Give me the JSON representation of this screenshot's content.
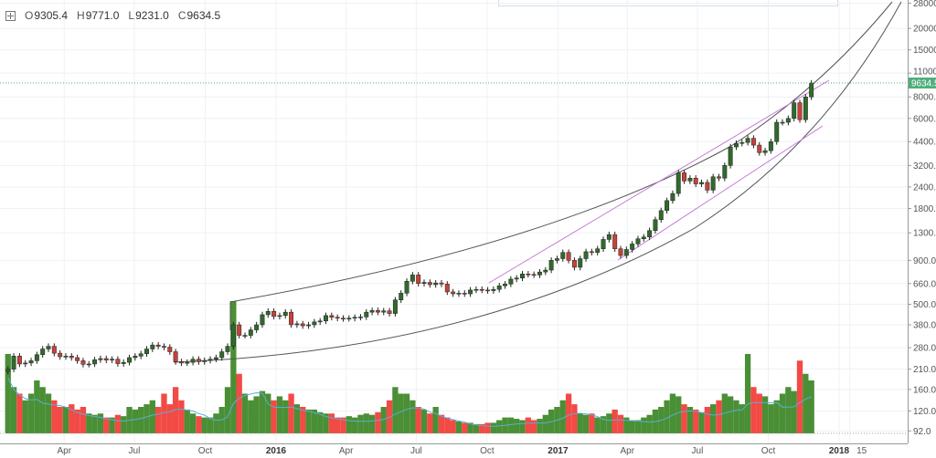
{
  "legend": {
    "open_label": "O",
    "open": "9305.4",
    "high_label": "H",
    "high": "9771.0",
    "low_label": "L",
    "low": "9231.0",
    "close_label": "C",
    "close": "9634.5"
  },
  "last_price_badge": "9634.5",
  "chart_data": {
    "type": "candlestick",
    "yscale": "log",
    "ylim": [
      88,
      28000
    ],
    "grid": true,
    "y_ticks": [
      "28000",
      "20000",
      "15000",
      "11000",
      "8000.0",
      "6000.0",
      "4400.0",
      "3200.0",
      "2400.0",
      "1800.0",
      "1300.0",
      "900.0",
      "660.0",
      "500.0",
      "380.0",
      "280.0",
      "210.0",
      "160.0",
      "120.0",
      "92.0"
    ],
    "x_ticks": [
      {
        "label": "Apr",
        "date": "2015-04-01"
      },
      {
        "label": "Jul",
        "date": "2015-07-01"
      },
      {
        "label": "Oct",
        "date": "2015-10-01"
      },
      {
        "label": "2016",
        "date": "2016-01-01",
        "year": true
      },
      {
        "label": "Apr",
        "date": "2016-04-01"
      },
      {
        "label": "Jul",
        "date": "2016-07-01"
      },
      {
        "label": "Oct",
        "date": "2016-10-01"
      },
      {
        "label": "2017",
        "date": "2017-01-01",
        "year": true
      },
      {
        "label": "Apr",
        "date": "2017-04-01"
      },
      {
        "label": "Jul",
        "date": "2017-07-01"
      },
      {
        "label": "Oct",
        "date": "2017-10-01"
      },
      {
        "label": "2018",
        "date": "2018-01-01",
        "year": true
      },
      {
        "label": "15",
        "date": "2018-01-15"
      }
    ],
    "first_date": "2015-01-18",
    "last_date": "2017-11-26",
    "closes": [
      210,
      250,
      225,
      228,
      235,
      255,
      275,
      285,
      260,
      248,
      250,
      245,
      235,
      224,
      225,
      238,
      242,
      237,
      240,
      226,
      230,
      245,
      250,
      258,
      275,
      290,
      285,
      282,
      265,
      232,
      228,
      230,
      240,
      232,
      236,
      240,
      245,
      265,
      285,
      380,
      330,
      330,
      355,
      380,
      435,
      455,
      425,
      430,
      450,
      380,
      385,
      375,
      380,
      395,
      400,
      430,
      420,
      415,
      413,
      415,
      420,
      422,
      450,
      460,
      450,
      458,
      442,
      530,
      580,
      680,
      740,
      660,
      670,
      650,
      665,
      655,
      590,
      575,
      580,
      575,
      605,
      610,
      605,
      600,
      610,
      640,
      655,
      700,
      710,
      750,
      745,
      740,
      770,
      790,
      900,
      920,
      1000,
      900,
      820,
      920,
      1010,
      1000,
      1050,
      1190,
      1270,
      1050,
      960,
      1040,
      1120,
      1200,
      1230,
      1340,
      1550,
      1750,
      2000,
      2200,
      2900,
      2600,
      2700,
      2500,
      2550,
      2300,
      2750,
      2700,
      3200,
      4100,
      4300,
      4350,
      4600,
      4200,
      3800,
      3900,
      4400,
      5700,
      5700,
      6000,
      7400,
      5900,
      8000,
      9634.5
    ],
    "volume_relative": [
      0.6,
      0.35,
      0.3,
      0.25,
      0.3,
      0.4,
      0.35,
      0.3,
      0.25,
      0.2,
      0.2,
      0.22,
      0.18,
      0.2,
      0.15,
      0.14,
      0.15,
      0.12,
      0.12,
      0.14,
      0.13,
      0.2,
      0.18,
      0.2,
      0.22,
      0.25,
      0.2,
      0.3,
      0.22,
      0.35,
      0.25,
      0.18,
      0.15,
      0.13,
      0.12,
      0.12,
      0.15,
      0.2,
      0.35,
      1.0,
      0.45,
      0.3,
      0.25,
      0.28,
      0.32,
      0.3,
      0.25,
      0.28,
      0.25,
      0.3,
      0.22,
      0.2,
      0.18,
      0.18,
      0.16,
      0.15,
      0.15,
      0.12,
      0.12,
      0.13,
      0.12,
      0.14,
      0.15,
      0.14,
      0.16,
      0.2,
      0.25,
      0.35,
      0.3,
      0.3,
      0.25,
      0.2,
      0.18,
      0.15,
      0.2,
      0.14,
      0.12,
      0.1,
      0.09,
      0.08,
      0.08,
      0.07,
      0.07,
      0.08,
      0.08,
      0.1,
      0.12,
      0.12,
      0.11,
      0.1,
      0.12,
      0.1,
      0.11,
      0.14,
      0.18,
      0.2,
      0.25,
      0.3,
      0.22,
      0.15,
      0.14,
      0.15,
      0.12,
      0.13,
      0.15,
      0.18,
      0.14,
      0.12,
      0.1,
      0.1,
      0.12,
      0.14,
      0.18,
      0.2,
      0.25,
      0.3,
      0.28,
      0.22,
      0.2,
      0.18,
      0.16,
      0.2,
      0.22,
      0.25,
      0.3,
      0.28,
      0.25,
      0.22,
      0.6,
      0.35,
      0.3,
      0.28,
      0.22,
      0.25,
      0.3,
      0.35,
      0.32,
      0.55,
      0.45,
      0.4
    ]
  },
  "colors": {
    "up": "#2f6b2a",
    "down": "#c8413a",
    "volume_up": "#4a8f35",
    "volume_down": "#f24a45",
    "trend_curve": "#555555",
    "trend_channel": "#c77ad8",
    "volume_ma": "#5aaed6",
    "price_badge": "#4fae7c",
    "grid": "#eef1f5"
  }
}
